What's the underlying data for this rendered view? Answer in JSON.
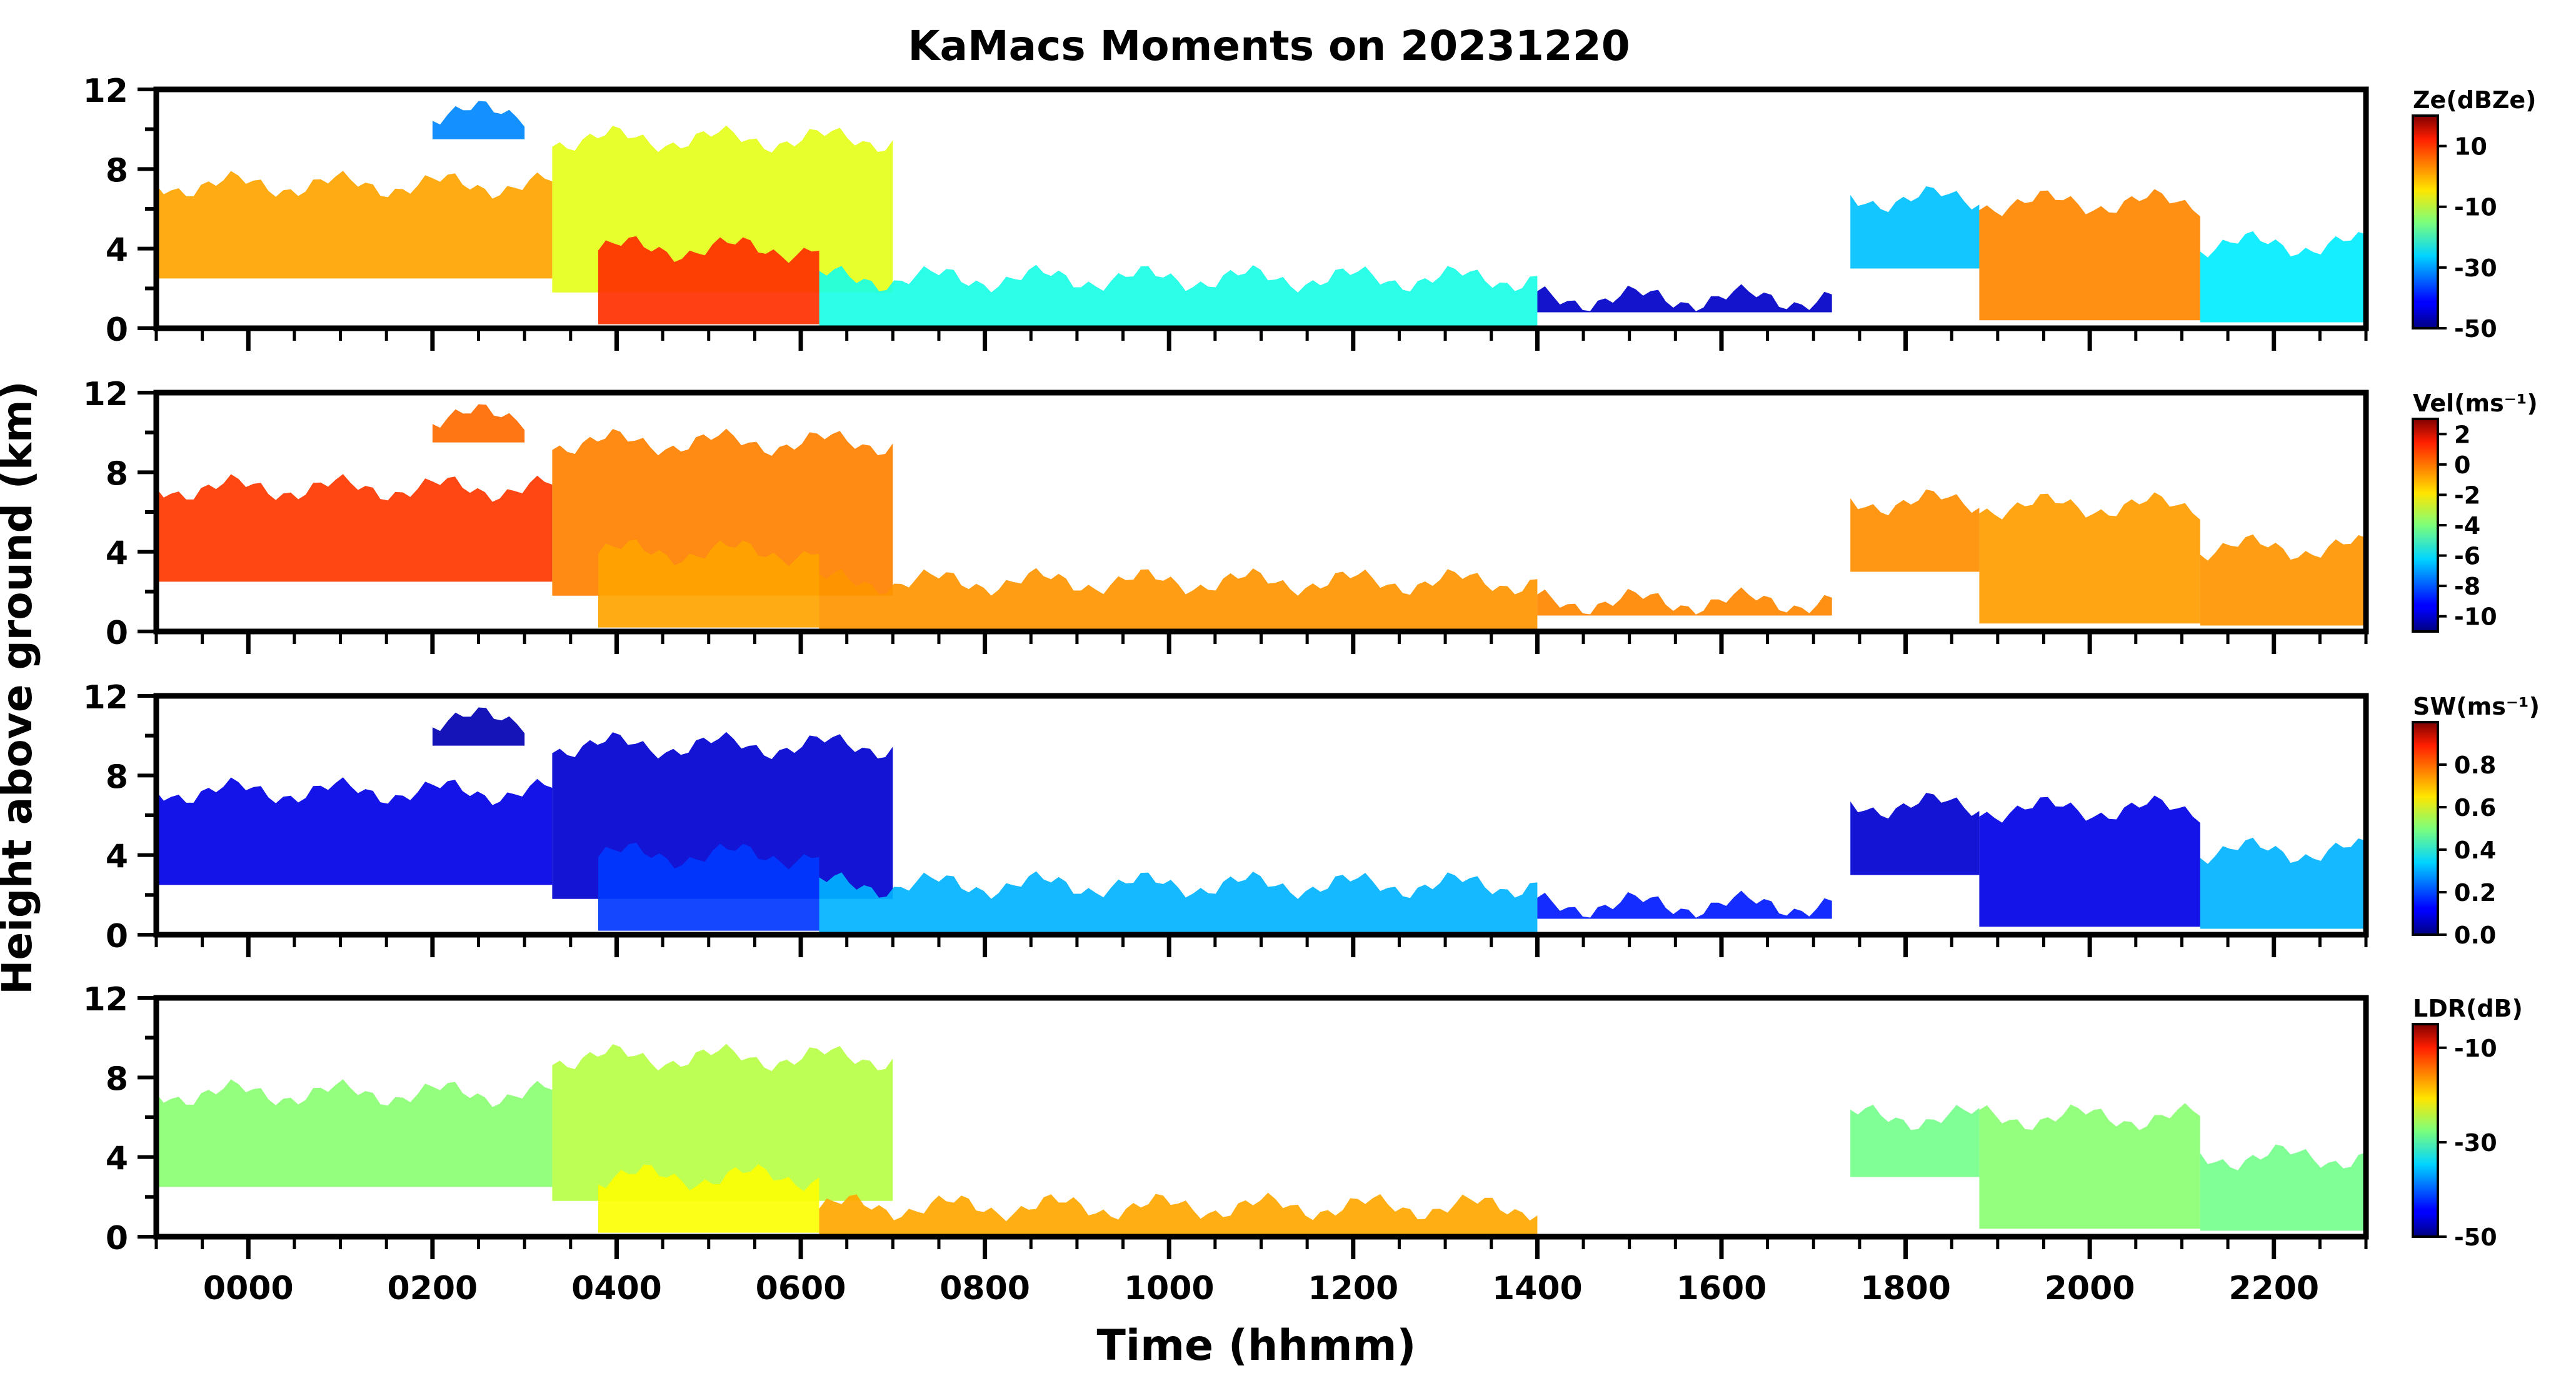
{
  "chart_data": {
    "type": "heatmap",
    "title": "KaMacs Moments on 20231220",
    "xlabel": "Time (hhmm)",
    "ylabel": "Height above ground (km)",
    "xlim": [
      -100,
      2300
    ],
    "xticks": [
      "0000",
      "0200",
      "0400",
      "0600",
      "0800",
      "1000",
      "1200",
      "1400",
      "1600",
      "1800",
      "2000",
      "2200"
    ],
    "xtick_values": [
      0,
      200,
      400,
      600,
      800,
      1000,
      1200,
      1400,
      1600,
      1800,
      2000,
      2200
    ],
    "ylim": [
      0,
      12
    ],
    "yticks": [
      "0",
      "4",
      "8",
      "12"
    ],
    "yminor_step": 2,
    "panels": [
      {
        "name": "reflectivity",
        "colorbar_label": "Ze(dBZe)",
        "colorbar_ticks": [
          "10",
          "-10",
          "-30",
          "-50"
        ],
        "colorbar_range": [
          -50,
          20
        ],
        "colorbar_tick_values": [
          10,
          -10,
          -30,
          -50
        ],
        "features": [
          {
            "t": [
              -100,
              330
            ],
            "bottom": 2.5,
            "top": 7.2,
            "value": 0
          },
          {
            "t": [
              330,
              700
            ],
            "bottom": 1.8,
            "top": 9.5,
            "value": -8
          },
          {
            "t": [
              200,
              300
            ],
            "bottom": 9.5,
            "top": 10.8,
            "value": -32
          },
          {
            "t": [
              380,
              620
            ],
            "bottom": 0.2,
            "top": 4.0,
            "value": 8
          },
          {
            "t": [
              620,
              1400
            ],
            "bottom": 0.1,
            "top": 2.5,
            "value": -22
          },
          {
            "t": [
              1400,
              1720
            ],
            "bottom": 0.8,
            "top": 1.5,
            "value": -45
          },
          {
            "t": [
              1740,
              1880
            ],
            "bottom": 3.0,
            "top": 6.5,
            "value": -28
          },
          {
            "t": [
              1880,
              2120
            ],
            "bottom": 0.4,
            "top": 6.3,
            "value": 2
          },
          {
            "t": [
              2120,
              2300
            ],
            "bottom": 0.3,
            "top": 4.2,
            "value": -25
          }
        ]
      },
      {
        "name": "velocity",
        "colorbar_label": "Vel(ms⁻¹)",
        "colorbar_ticks": [
          "2",
          "0",
          "-2",
          "-4",
          "-6",
          "-8",
          "-10"
        ],
        "colorbar_range": [
          -11,
          3
        ],
        "colorbar_tick_values": [
          2,
          0,
          -2,
          -4,
          -6,
          -8,
          -10
        ],
        "features": [
          {
            "t": [
              -100,
              330
            ],
            "bottom": 2.5,
            "top": 7.2,
            "value": 0.5
          },
          {
            "t": [
              330,
              700
            ],
            "bottom": 1.8,
            "top": 9.5,
            "value": -0.5
          },
          {
            "t": [
              200,
              300
            ],
            "bottom": 9.5,
            "top": 10.8,
            "value": -0.2
          },
          {
            "t": [
              380,
              620
            ],
            "bottom": 0.2,
            "top": 4.0,
            "value": -1.0
          },
          {
            "t": [
              620,
              1400
            ],
            "bottom": 0.1,
            "top": 2.5,
            "value": -0.8
          },
          {
            "t": [
              1400,
              1720
            ],
            "bottom": 0.8,
            "top": 1.5,
            "value": -0.6
          },
          {
            "t": [
              1740,
              1880
            ],
            "bottom": 3.0,
            "top": 6.5,
            "value": -0.7
          },
          {
            "t": [
              1880,
              2120
            ],
            "bottom": 0.4,
            "top": 6.3,
            "value": -0.9
          },
          {
            "t": [
              2120,
              2300
            ],
            "bottom": 0.3,
            "top": 4.2,
            "value": -0.8
          }
        ]
      },
      {
        "name": "spectrum_width",
        "colorbar_label": "SW(ms⁻¹)",
        "colorbar_ticks": [
          "0.8",
          "0.6",
          "0.4",
          "0.2",
          "0.0"
        ],
        "colorbar_range": [
          0,
          1
        ],
        "colorbar_tick_values": [
          0.8,
          0.6,
          0.4,
          0.2,
          0.0
        ],
        "features": [
          {
            "t": [
              -100,
              330
            ],
            "bottom": 2.5,
            "top": 7.2,
            "value": 0.1
          },
          {
            "t": [
              330,
              700
            ],
            "bottom": 1.8,
            "top": 9.5,
            "value": 0.08
          },
          {
            "t": [
              200,
              300
            ],
            "bottom": 9.5,
            "top": 10.8,
            "value": 0.05
          },
          {
            "t": [
              380,
              620
            ],
            "bottom": 0.2,
            "top": 4.0,
            "value": 0.18
          },
          {
            "t": [
              620,
              1400
            ],
            "bottom": 0.1,
            "top": 2.5,
            "value": 0.3
          },
          {
            "t": [
              1400,
              1720
            ],
            "bottom": 0.8,
            "top": 1.5,
            "value": 0.15
          },
          {
            "t": [
              1740,
              1880
            ],
            "bottom": 3.0,
            "top": 6.5,
            "value": 0.08
          },
          {
            "t": [
              1880,
              2120
            ],
            "bottom": 0.4,
            "top": 6.3,
            "value": 0.1
          },
          {
            "t": [
              2120,
              2300
            ],
            "bottom": 0.3,
            "top": 4.2,
            "value": 0.3
          }
        ]
      },
      {
        "name": "ldr",
        "colorbar_label": "LDR(dB)",
        "colorbar_ticks": [
          "-10",
          "-30",
          "-50"
        ],
        "colorbar_range": [
          -50,
          -5
        ],
        "colorbar_tick_values": [
          -10,
          -30,
          -50
        ],
        "features": [
          {
            "t": [
              -100,
              330
            ],
            "bottom": 2.5,
            "top": 7.2,
            "value": -27
          },
          {
            "t": [
              330,
              700
            ],
            "bottom": 1.8,
            "top": 9.0,
            "value": -25
          },
          {
            "t": [
              380,
              620
            ],
            "bottom": 0.2,
            "top": 3.0,
            "value": -22
          },
          {
            "t": [
              620,
              1400
            ],
            "bottom": 0.1,
            "top": 1.5,
            "value": -18
          },
          {
            "t": [
              1740,
              1880
            ],
            "bottom": 3.0,
            "top": 6.0,
            "value": -28
          },
          {
            "t": [
              1880,
              2120
            ],
            "bottom": 0.4,
            "top": 6.0,
            "value": -27
          },
          {
            "t": [
              2120,
              2300
            ],
            "bottom": 0.3,
            "top": 4.0,
            "value": -28
          }
        ]
      }
    ]
  }
}
